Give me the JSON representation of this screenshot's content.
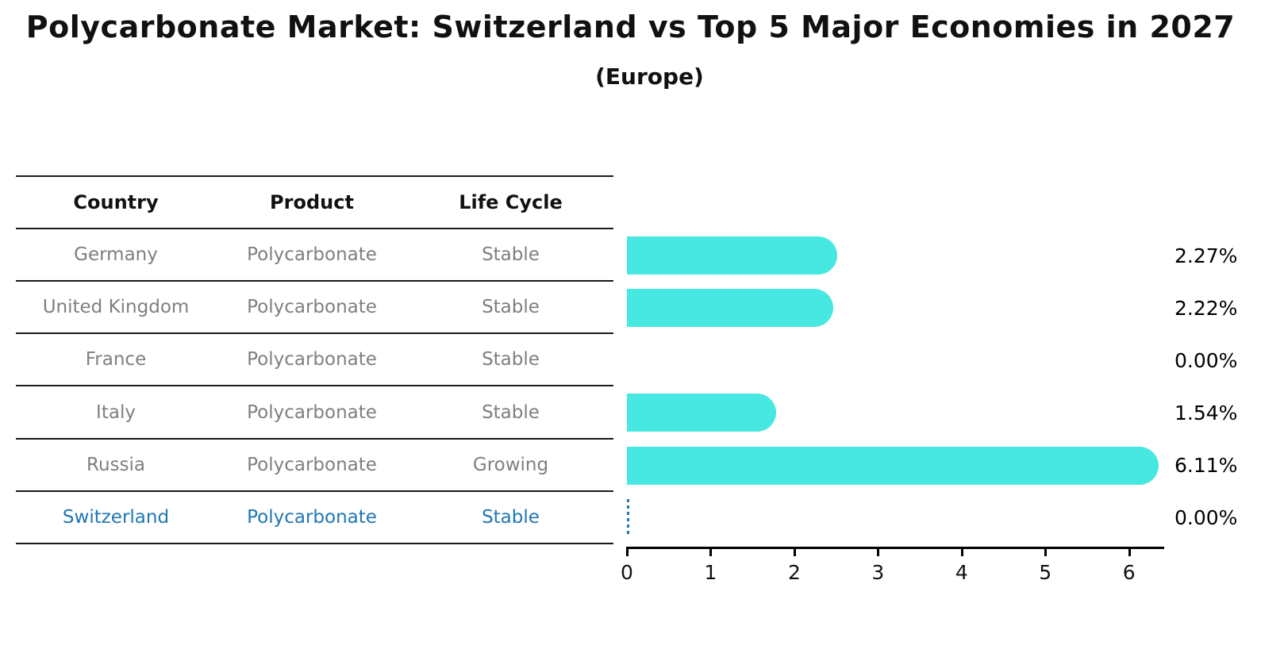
{
  "title": "Polycarbonate Market: Switzerland vs Top 5 Major Economies in 2027",
  "subtitle": "(Europe)",
  "table": {
    "headers": [
      "Country",
      "Product",
      "Life Cycle"
    ],
    "rows": [
      {
        "country": "Germany",
        "product": "Polycarbonate",
        "life_cycle": "Stable",
        "value_label": "2.27%",
        "highlighted": false
      },
      {
        "country": "United Kingdom",
        "product": "Polycarbonate",
        "life_cycle": "Stable",
        "value_label": "2.22%",
        "highlighted": false
      },
      {
        "country": "France",
        "product": "Polycarbonate",
        "life_cycle": "Stable",
        "value_label": "0.00%",
        "highlighted": false
      },
      {
        "country": "Italy",
        "product": "Polycarbonate",
        "life_cycle": "Stable",
        "value_label": "1.54%",
        "highlighted": false
      },
      {
        "country": "Russia",
        "product": "Polycarbonate",
        "life_cycle": "Growing",
        "value_label": "6.11%",
        "highlighted": false
      },
      {
        "country": "Switzerland",
        "product": "Polycarbonate",
        "life_cycle": "Stable",
        "value_label": "0.00%",
        "highlighted": true
      }
    ]
  },
  "chart_data": {
    "type": "bar",
    "orientation": "horizontal",
    "title": "Polycarbonate Market: Switzerland vs Top 5 Major Economies in 2027",
    "subtitle": "(Europe)",
    "categories": [
      "Germany",
      "United Kingdom",
      "France",
      "Italy",
      "Russia",
      "Switzerland"
    ],
    "values": [
      2.27,
      2.22,
      0.0,
      1.54,
      6.11,
      0.0
    ],
    "value_labels": [
      "2.27%",
      "2.22%",
      "0.00%",
      "1.54%",
      "6.11%",
      "0.00%"
    ],
    "xlabel": "",
    "ylabel": "",
    "xlim": [
      0,
      6.42
    ],
    "x_ticks": [
      0,
      1,
      2,
      3,
      4,
      5,
      6
    ],
    "grid": false,
    "legend": false,
    "highlight_category": "Switzerland",
    "highlight_marker": "dashed-zero-line"
  },
  "colors": {
    "bar": "#48e8e2",
    "highlight": "#1f77b4",
    "row_text": "#7f7f7f",
    "header_text": "#111111",
    "value_text": "#000000",
    "axis": "#000000",
    "background": "#ffffff"
  }
}
